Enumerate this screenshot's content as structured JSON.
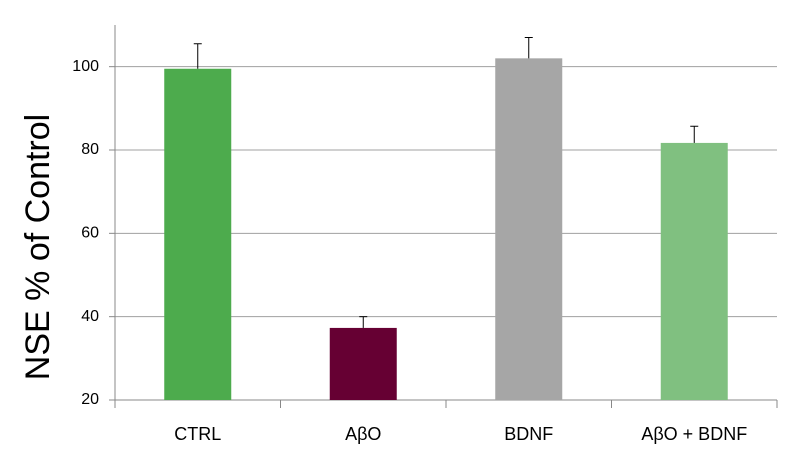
{
  "chart_data": {
    "type": "bar",
    "y_label": "NSE % of Control",
    "categories": [
      "CTRL",
      "AβO",
      "BDNF",
      "AβO + BDNF"
    ],
    "values": [
      99.5,
      37.3,
      102,
      81.7
    ],
    "errors": [
      6,
      2.7,
      5,
      4
    ],
    "colors": [
      "#4dab4d",
      "#660033",
      "#a6a6a6",
      "#80c080"
    ],
    "ylim": [
      20,
      110
    ],
    "yticks": [
      20,
      40,
      60,
      80,
      100
    ],
    "grid": true
  }
}
